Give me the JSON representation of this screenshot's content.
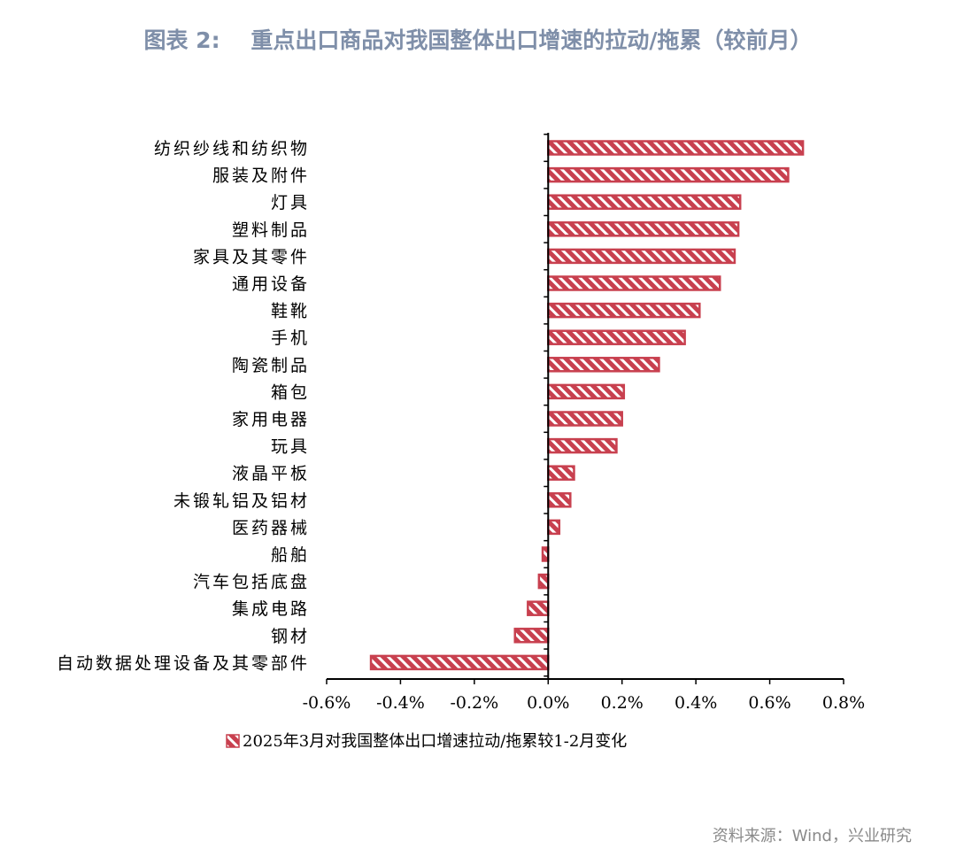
{
  "figure": {
    "title": "图表 2:    重点出口商品对我国整体出口增速的拉动/拖累（较前月）",
    "source": "资料来源：Wind，兴业研究"
  },
  "colors": {
    "bar": "#c8404f",
    "axis": "#000000",
    "title": "#7f8fa9",
    "source": "#8a8a8a"
  },
  "chart_data": {
    "type": "bar",
    "orientation": "horizontal",
    "categories": [
      "纺织纱线和纺织物",
      "服装及附件",
      "灯具",
      "塑料制品",
      "家具及其零件",
      "通用设备",
      "鞋靴",
      "手机",
      "陶瓷制品",
      "箱包",
      "家用电器",
      "玩具",
      "液晶平板",
      "未锻轧铝及铝材",
      "医药器械",
      "船舶",
      "汽车包括底盘",
      "集成电路",
      "钢材",
      "自动数据处理设备及其零部件"
    ],
    "series": [
      {
        "name": "2025年3月对我国整体出口增速拉动/拖累较1-2月变化",
        "values": [
          0.69,
          0.65,
          0.52,
          0.515,
          0.505,
          0.465,
          0.41,
          0.37,
          0.3,
          0.205,
          0.2,
          0.185,
          0.07,
          0.06,
          0.03,
          -0.015,
          -0.025,
          -0.055,
          -0.09,
          -0.48
        ]
      }
    ],
    "unit": "%",
    "xlim": [
      -0.6,
      0.8
    ],
    "xticks": [
      -0.6,
      -0.4,
      -0.2,
      0.0,
      0.2,
      0.4,
      0.6,
      0.8
    ],
    "xtick_labels": [
      "-0.6%",
      "-0.4%",
      "-0.2%",
      "0.0%",
      "0.2%",
      "0.4%",
      "0.6%",
      "0.8%"
    ],
    "grid": false,
    "legend_position": "bottom",
    "bar_pattern": "diagonal-hatch"
  }
}
